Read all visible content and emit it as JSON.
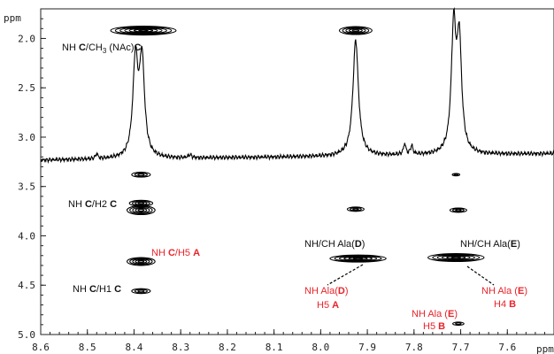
{
  "chart_data": {
    "type": "2d-nmr",
    "x_unit": "ppm",
    "y_unit": "ppm",
    "xlim": [
      8.6,
      7.5
    ],
    "ylim": [
      1.7,
      5.0
    ],
    "x_ticks": [
      "8.6",
      "8.5",
      "8.4",
      "8.3",
      "8.2",
      "8.1",
      "8.0",
      "7.9",
      "7.8",
      "7.7",
      "7.6"
    ],
    "y_ticks": [
      "2.0",
      "2.5",
      "3.0",
      "3.5",
      "4.0",
      "4.5",
      "5.0"
    ],
    "cross_peaks": [
      {
        "x": 8.38,
        "y": 1.92,
        "rx": 0.07,
        "ry": 0.045,
        "rings": 7
      },
      {
        "x": 7.925,
        "y": 1.92,
        "rx": 0.035,
        "ry": 0.04,
        "rings": 5
      },
      {
        "x": 8.385,
        "y": 3.38,
        "rx": 0.02,
        "ry": 0.025,
        "rings": 3
      },
      {
        "x": 8.385,
        "y": 3.67,
        "rx": 0.025,
        "ry": 0.03,
        "rings": 4
      },
      {
        "x": 8.385,
        "y": 3.74,
        "rx": 0.03,
        "ry": 0.045,
        "rings": 5
      },
      {
        "x": 8.385,
        "y": 4.26,
        "rx": 0.03,
        "ry": 0.04,
        "rings": 5
      },
      {
        "x": 8.385,
        "y": 4.56,
        "rx": 0.02,
        "ry": 0.025,
        "rings": 3
      },
      {
        "x": 7.925,
        "y": 3.73,
        "rx": 0.018,
        "ry": 0.022,
        "rings": 3
      },
      {
        "x": 7.92,
        "y": 4.23,
        "rx": 0.06,
        "ry": 0.035,
        "rings": 6
      },
      {
        "x": 7.71,
        "y": 3.38,
        "rx": 0.008,
        "ry": 0.012,
        "rings": 2
      },
      {
        "x": 7.705,
        "y": 3.74,
        "rx": 0.018,
        "ry": 0.022,
        "rings": 3
      },
      {
        "x": 7.71,
        "y": 4.22,
        "rx": 0.06,
        "ry": 0.04,
        "rings": 6
      },
      {
        "x": 7.705,
        "y": 4.89,
        "rx": 0.012,
        "ry": 0.016,
        "rings": 2
      }
    ],
    "trace_peaks": [
      {
        "x": 8.397,
        "height": 0.97,
        "width": 0.0065
      },
      {
        "x": 8.383,
        "height": 0.97,
        "width": 0.0065
      },
      {
        "x": 7.925,
        "height": 1.18,
        "width": 0.007
      },
      {
        "x": 7.715,
        "height": 1.24,
        "width": 0.006
      },
      {
        "x": 7.703,
        "height": 1.1,
        "width": 0.006
      },
      {
        "x": 7.82,
        "height": 0.11,
        "width": 0.003
      },
      {
        "x": 7.805,
        "height": 0.09,
        "width": 0.003
      },
      {
        "x": 8.48,
        "height": 0.05,
        "width": 0.003
      },
      {
        "x": 8.28,
        "height": 0.03,
        "width": 0.004
      }
    ],
    "trace_baseline_y": 3.2
  },
  "labels": {
    "nh_ch3": {
      "pre": "NH ",
      "b1": "C",
      "mid": "/CH",
      "sub": "3",
      "post": " (NAc)",
      "b2": "C"
    },
    "nh_h2": {
      "pre": "NH ",
      "b1": "C",
      "mid": "/H2 ",
      "b2": "C"
    },
    "nh_h5": {
      "pre": "NH ",
      "b1": "C",
      "mid": "/H5 ",
      "b2": "A"
    },
    "nh_h1": {
      "pre": "NH ",
      "b1": "C",
      "mid": "/H1 ",
      "b2": "C"
    },
    "nhch_d": {
      "pre": "NH/CH  Ala(",
      "b1": "D",
      "post": ")"
    },
    "nhch_e": {
      "pre": "NH/CH  Ala(",
      "b1": "E",
      "post": ")"
    },
    "ala_d_h5": {
      "line1_pre": "NH Ala(",
      "line1_b": "D",
      "line1_post": ")",
      "line2_pre": "H5 ",
      "line2_b": "A"
    },
    "ala_e_h4": {
      "line1_pre": "NH Ala (",
      "line1_b": "E",
      "line1_post": ")",
      "line2_pre": "H4 ",
      "line2_b": "B"
    },
    "ala_e_h5": {
      "line1_pre": "NH Ala (",
      "line1_b": "E",
      "line1_post": ")",
      "line2_pre": "H5  ",
      "line2_b": "B"
    }
  }
}
